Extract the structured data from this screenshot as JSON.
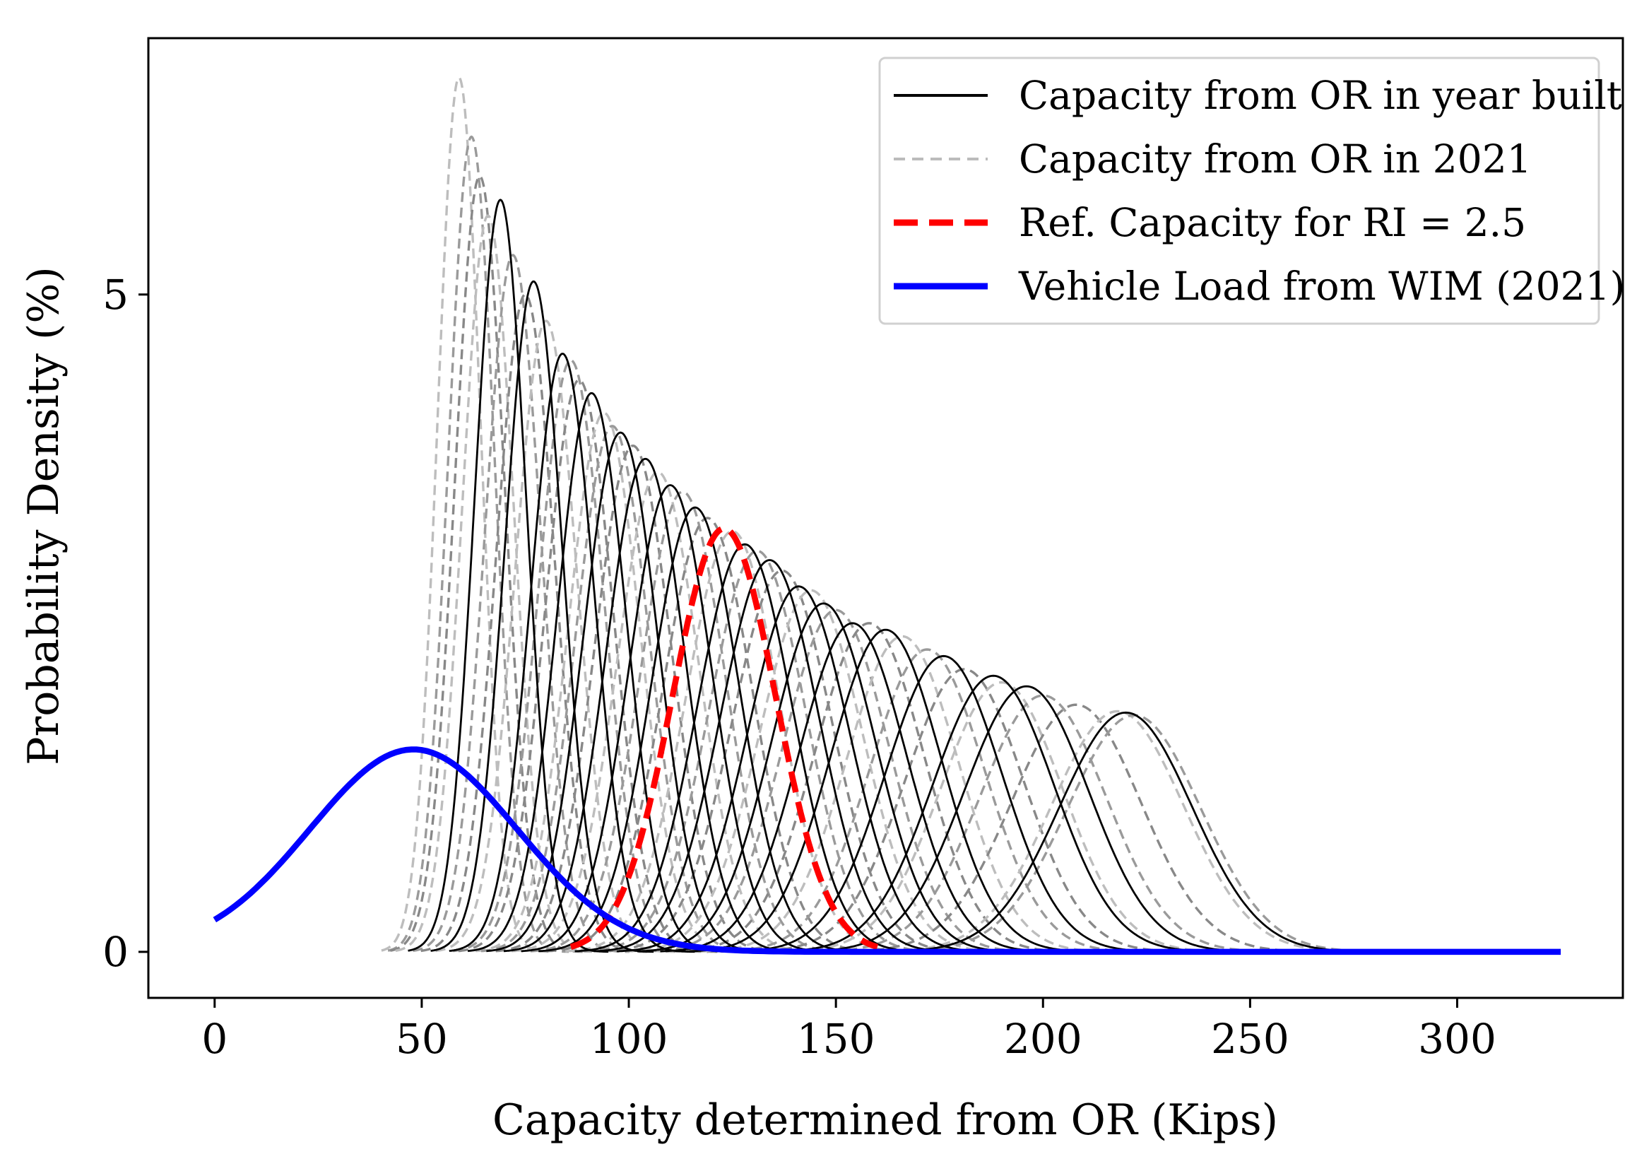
{
  "chart_data": {
    "type": "line",
    "title": "",
    "xlabel": "Capacity determined from OR (Kips)",
    "ylabel": "Probability Density (%)",
    "xlim": [
      -16,
      340
    ],
    "ylim": [
      -0.35,
      6.95
    ],
    "x_ticks": [
      0,
      50,
      100,
      150,
      200,
      250,
      300
    ],
    "x_tick_labels": [
      "0",
      "50",
      "100",
      "150",
      "200",
      "250",
      "300"
    ],
    "y_ticks": [
      0,
      5
    ],
    "y_tick_labels": [
      "0",
      "5"
    ],
    "grid": false,
    "legend_position": "top-right",
    "legend": [
      {
        "label": "Capacity from OR in year built",
        "color": "#000000",
        "style": "solid"
      },
      {
        "label": "Capacity from OR in 2021",
        "color": "#bbbbbb",
        "style": "dashed"
      },
      {
        "label": "Ref. Capacity for RI = 2.5",
        "color": "#ff0000",
        "style": "dashed-bold"
      },
      {
        "label": "Vehicle Load from WIM (2021)",
        "color": "#0000ff",
        "style": "solid-bold"
      }
    ],
    "series": [
      {
        "name": "Vehicle Load from WIM (2021)",
        "color": "#0000ff",
        "curve": "gaussian",
        "mean": 48,
        "std": 25,
        "peak": 1.54,
        "x_range": [
          0,
          325
        ]
      },
      {
        "name": "Ref. Capacity for RI = 2.5",
        "color": "#ff0000",
        "curve": "gaussian",
        "mean": 123,
        "std": 12.4,
        "peak": 3.22,
        "x_range": [
          86,
          160
        ]
      },
      {
        "name": "Capacity from OR in year built",
        "color": "#000000",
        "curve": "gaussian",
        "members": [
          {
            "mean": 69,
            "std": 6.2,
            "peak": 5.72
          },
          {
            "mean": 77,
            "std": 6.9,
            "peak": 5.1
          },
          {
            "mean": 84,
            "std": 7.6,
            "peak": 4.55
          },
          {
            "mean": 91,
            "std": 8.3,
            "peak": 4.25
          },
          {
            "mean": 98,
            "std": 9.0,
            "peak": 3.95
          },
          {
            "mean": 104,
            "std": 9.5,
            "peak": 3.75
          },
          {
            "mean": 110,
            "std": 10.0,
            "peak": 3.55
          },
          {
            "mean": 116,
            "std": 10.5,
            "peak": 3.38
          },
          {
            "mean": 128,
            "std": 11.4,
            "peak": 3.1
          },
          {
            "mean": 134,
            "std": 11.8,
            "peak": 2.98
          },
          {
            "mean": 141,
            "std": 12.2,
            "peak": 2.78
          },
          {
            "mean": 147,
            "std": 12.5,
            "peak": 2.65
          },
          {
            "mean": 154,
            "std": 12.9,
            "peak": 2.5
          },
          {
            "mean": 162,
            "std": 13.3,
            "peak": 2.45
          },
          {
            "mean": 176,
            "std": 14.0,
            "peak": 2.25
          },
          {
            "mean": 188,
            "std": 14.6,
            "peak": 2.1
          },
          {
            "mean": 196,
            "std": 15.0,
            "peak": 2.02
          },
          {
            "mean": 220,
            "std": 16.0,
            "peak": 1.82
          }
        ]
      },
      {
        "name": "Capacity from OR in 2021",
        "color": "#bbbbbb",
        "curve": "gaussian",
        "members": [
          {
            "mean": 59,
            "std": 5.2,
            "peak": 6.65
          },
          {
            "mean": 62,
            "std": 5.6,
            "peak": 6.2
          },
          {
            "mean": 64,
            "std": 6.0,
            "peak": 5.9
          },
          {
            "mean": 66,
            "std": 6.2,
            "peak": 5.6
          },
          {
            "mean": 72,
            "std": 6.7,
            "peak": 5.3
          },
          {
            "mean": 75,
            "std": 7.0,
            "peak": 5.0
          },
          {
            "mean": 80,
            "std": 7.4,
            "peak": 4.8
          },
          {
            "mean": 86,
            "std": 7.9,
            "peak": 4.5
          },
          {
            "mean": 88,
            "std": 8.1,
            "peak": 4.35
          },
          {
            "mean": 94,
            "std": 8.6,
            "peak": 4.1
          },
          {
            "mean": 96,
            "std": 8.8,
            "peak": 4.0
          },
          {
            "mean": 101,
            "std": 9.2,
            "peak": 3.85
          },
          {
            "mean": 107,
            "std": 9.8,
            "peak": 3.65
          },
          {
            "mean": 113,
            "std": 10.2,
            "peak": 3.5
          },
          {
            "mean": 119,
            "std": 10.8,
            "peak": 3.3
          },
          {
            "mean": 125,
            "std": 11.2,
            "peak": 3.2
          },
          {
            "mean": 131,
            "std": 11.6,
            "peak": 3.05
          },
          {
            "mean": 137,
            "std": 12.0,
            "peak": 2.9
          },
          {
            "mean": 144,
            "std": 12.4,
            "peak": 2.75
          },
          {
            "mean": 150,
            "std": 12.7,
            "peak": 2.6
          },
          {
            "mean": 158,
            "std": 13.1,
            "peak": 2.5
          },
          {
            "mean": 166,
            "std": 13.5,
            "peak": 2.4
          },
          {
            "mean": 172,
            "std": 13.8,
            "peak": 2.3
          },
          {
            "mean": 181,
            "std": 14.3,
            "peak": 2.15
          },
          {
            "mean": 190,
            "std": 14.7,
            "peak": 2.05
          },
          {
            "mean": 200,
            "std": 15.2,
            "peak": 1.95
          },
          {
            "mean": 208,
            "std": 15.6,
            "peak": 1.88
          },
          {
            "mean": 218,
            "std": 16.0,
            "peak": 1.83
          },
          {
            "mean": 222,
            "std": 16.1,
            "peak": 1.8
          }
        ]
      }
    ]
  }
}
